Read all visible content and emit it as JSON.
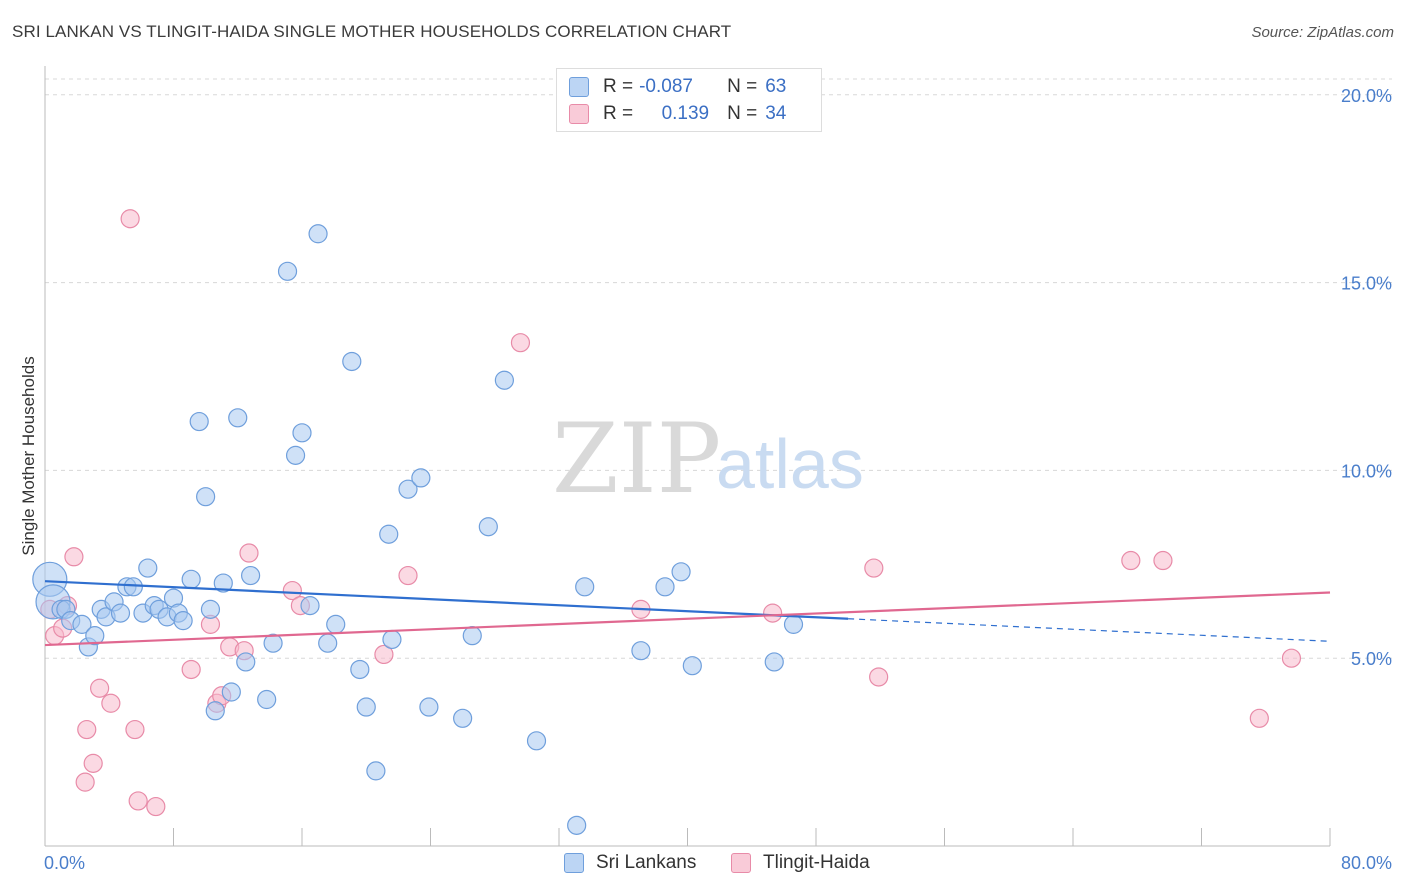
{
  "title": "SRI LANKAN VS TLINGIT-HAIDA SINGLE MOTHER HOUSEHOLDS CORRELATION CHART",
  "source": "Source: ZipAtlas.com",
  "watermark": {
    "zip": "ZIP",
    "atlas": "atlas"
  },
  "legend": {
    "rows": [
      {
        "r_label": "R =",
        "r_value": "-0.087",
        "n_label": "N =",
        "n_value": "63"
      },
      {
        "r_label": "R =",
        "r_value": "0.139",
        "n_label": "N =",
        "n_value": "34"
      }
    ]
  },
  "bottom_legend": {
    "series1": "Sri Lankans",
    "series2": "Tlingit-Haida"
  },
  "colors": {
    "blue_fill": "#a8c8f0",
    "blue_stroke": "#6f9fdc",
    "blue_line": "#2f6fcf",
    "pink_fill": "#f7b9cc",
    "pink_stroke": "#e88ba8",
    "pink_line": "#e06890",
    "tick_text": "#4a7ecb",
    "grid": "#d8d8d8"
  },
  "chart_data": {
    "type": "scatter",
    "title": "SRI LANKAN VS TLINGIT-HAIDA SINGLE MOTHER HOUSEHOLDS CORRELATION CHART",
    "xlabel": "",
    "ylabel": "Single Mother Households",
    "xlim": [
      0,
      80
    ],
    "ylim": [
      0,
      20.5
    ],
    "x_ticks_labels": [
      "0.0%",
      "80.0%"
    ],
    "y_ticks": [
      5,
      10,
      15,
      20
    ],
    "y_ticks_labels": [
      "5.0%",
      "10.0%",
      "15.0%",
      "20.0%"
    ],
    "grid": true,
    "legend_position": "top-center",
    "series": [
      {
        "name": "Sri Lankans",
        "r": -0.087,
        "n": 63,
        "trend": {
          "x0": 0,
          "y0": 7.05,
          "x1": 50,
          "y1": 6.05,
          "dash_to_x": 80,
          "dash_to_y": 5.45
        },
        "points": [
          [
            0.3,
            7.1,
            "large"
          ],
          [
            0.5,
            6.5,
            "large"
          ],
          [
            1.0,
            6.3
          ],
          [
            1.3,
            6.3
          ],
          [
            1.6,
            6.0
          ],
          [
            2.3,
            5.9
          ],
          [
            2.7,
            5.3
          ],
          [
            3.1,
            5.6
          ],
          [
            3.5,
            6.3
          ],
          [
            3.8,
            6.1
          ],
          [
            4.3,
            6.5
          ],
          [
            4.7,
            6.2
          ],
          [
            5.1,
            6.9
          ],
          [
            5.5,
            6.9
          ],
          [
            6.1,
            6.2
          ],
          [
            6.4,
            7.4
          ],
          [
            6.8,
            6.4
          ],
          [
            7.1,
            6.3
          ],
          [
            7.6,
            6.1
          ],
          [
            8.0,
            6.6
          ],
          [
            8.3,
            6.2
          ],
          [
            8.6,
            6.0
          ],
          [
            9.1,
            7.1
          ],
          [
            9.6,
            11.3
          ],
          [
            10.0,
            9.3
          ],
          [
            10.3,
            6.3
          ],
          [
            10.6,
            3.6
          ],
          [
            11.1,
            7.0
          ],
          [
            11.6,
            4.1
          ],
          [
            12.0,
            11.4
          ],
          [
            12.5,
            4.9
          ],
          [
            12.8,
            7.2
          ],
          [
            13.8,
            3.9
          ],
          [
            14.2,
            5.4
          ],
          [
            15.1,
            15.3
          ],
          [
            15.6,
            10.4
          ],
          [
            16.0,
            11.0
          ],
          [
            16.5,
            6.4
          ],
          [
            17.0,
            16.3
          ],
          [
            17.6,
            5.4
          ],
          [
            18.1,
            5.9
          ],
          [
            19.1,
            12.9
          ],
          [
            19.6,
            4.7
          ],
          [
            20.0,
            3.7
          ],
          [
            20.6,
            2.0
          ],
          [
            21.4,
            8.3
          ],
          [
            21.6,
            5.5
          ],
          [
            22.6,
            9.5
          ],
          [
            23.4,
            9.8
          ],
          [
            23.9,
            3.7
          ],
          [
            26.0,
            3.4
          ],
          [
            26.6,
            5.6
          ],
          [
            27.6,
            8.5
          ],
          [
            28.6,
            12.4
          ],
          [
            30.6,
            2.8
          ],
          [
            33.1,
            0.55
          ],
          [
            33.6,
            6.9
          ],
          [
            37.1,
            5.2
          ],
          [
            38.6,
            6.9
          ],
          [
            39.6,
            7.3
          ],
          [
            40.3,
            4.8
          ],
          [
            45.4,
            4.9
          ],
          [
            46.6,
            5.9
          ]
        ]
      },
      {
        "name": "Tlingit-Haida",
        "r": 0.139,
        "n": 34,
        "trend": {
          "x0": 0,
          "y0": 5.35,
          "x1": 80,
          "y1": 6.75
        },
        "points": [
          [
            0.3,
            6.3
          ],
          [
            0.6,
            5.6
          ],
          [
            1.1,
            5.8
          ],
          [
            1.4,
            6.4
          ],
          [
            1.8,
            7.7
          ],
          [
            2.5,
            1.7
          ],
          [
            2.6,
            3.1
          ],
          [
            3.0,
            2.2
          ],
          [
            3.4,
            4.2
          ],
          [
            4.1,
            3.8
          ],
          [
            5.3,
            16.7
          ],
          [
            5.6,
            3.1
          ],
          [
            5.8,
            1.2
          ],
          [
            6.9,
            1.05
          ],
          [
            9.1,
            4.7
          ],
          [
            10.3,
            5.9
          ],
          [
            10.7,
            3.8
          ],
          [
            11.0,
            4.0
          ],
          [
            11.5,
            5.3
          ],
          [
            12.4,
            5.2
          ],
          [
            12.7,
            7.8
          ],
          [
            15.4,
            6.8
          ],
          [
            15.9,
            6.4
          ],
          [
            21.1,
            5.1
          ],
          [
            22.6,
            7.2
          ],
          [
            29.6,
            13.4
          ],
          [
            37.1,
            6.3
          ],
          [
            45.3,
            6.2
          ],
          [
            51.6,
            7.4
          ],
          [
            51.9,
            4.5
          ],
          [
            67.6,
            7.6
          ],
          [
            69.6,
            7.6
          ],
          [
            75.6,
            3.4
          ],
          [
            77.6,
            5.0
          ]
        ]
      }
    ]
  }
}
